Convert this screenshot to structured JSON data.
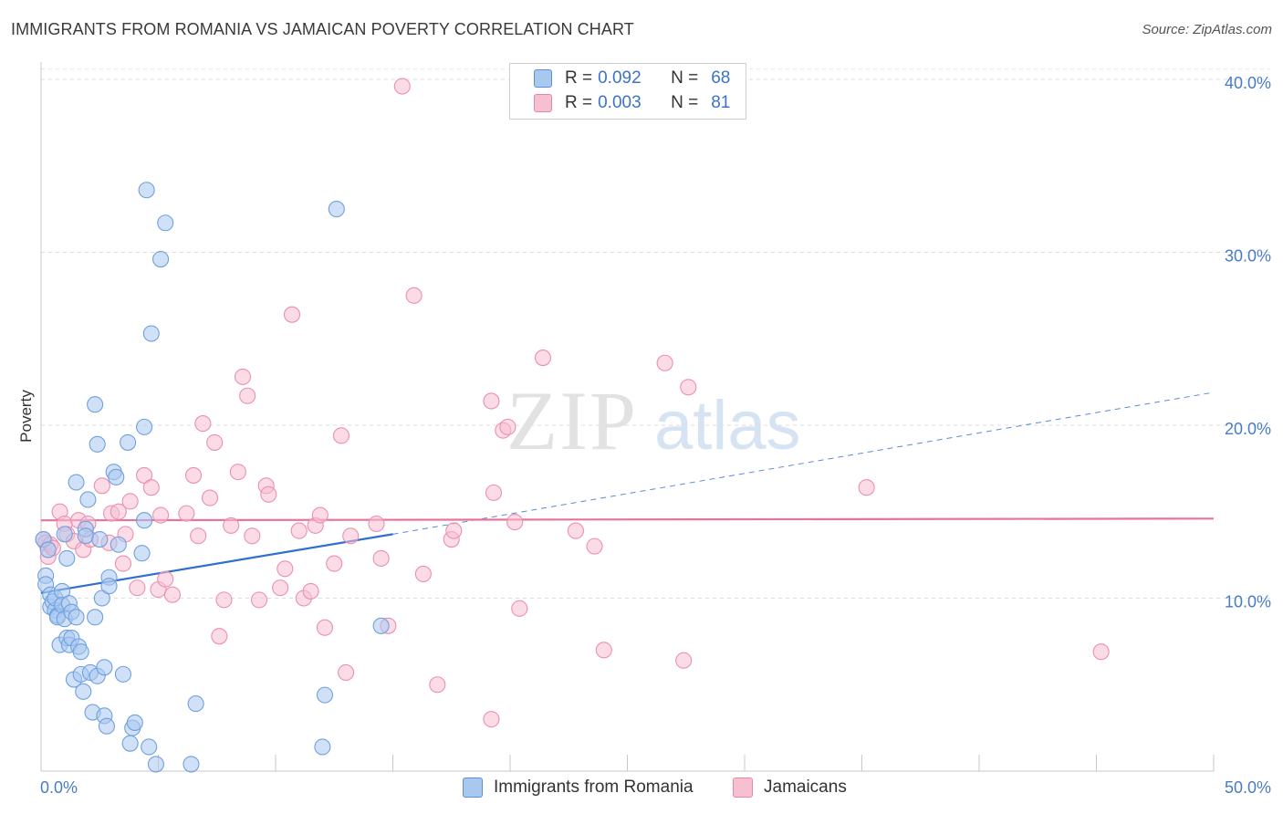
{
  "title": "IMMIGRANTS FROM ROMANIA VS JAMAICAN POVERTY CORRELATION CHART",
  "source": "Source: ZipAtlas.com",
  "watermark": {
    "zip": "ZIP",
    "atlas": "atlas"
  },
  "legend": {
    "r_label": "R =",
    "n_label": "N =",
    "rows": [
      {
        "r": "0.092",
        "n": "68",
        "color": "#a9c8f0",
        "border": "#5b8fd6"
      },
      {
        "r": "0.003",
        "n": "81",
        "color": "#f7c0d1",
        "border": "#e884a6"
      }
    ]
  },
  "chart_data": {
    "type": "scatter",
    "title": "IMMIGRANTS FROM ROMANIA VS JAMAICAN POVERTY CORRELATION CHART",
    "xlabel": "",
    "ylabel": "Poverty",
    "xlim": [
      0,
      50
    ],
    "ylim": [
      0,
      41
    ],
    "x_tick_labels": [
      "0.0%",
      "50.0%"
    ],
    "y_ticks": [
      10,
      20,
      30,
      40
    ],
    "y_tick_labels": [
      "10.0%",
      "20.0%",
      "30.0%",
      "40.0%"
    ],
    "grid": true,
    "legend_placement": "top-center",
    "series": [
      {
        "name": "Immigrants from Romania",
        "color": "#6fa0e0",
        "fill": "#a9c8f0",
        "trend": {
          "x": [
            0,
            15
          ],
          "y": [
            10.3,
            13.7
          ],
          "extended_to": [
            50,
            21.9
          ],
          "color": "#2e6fd1"
        },
        "points": [
          [
            0.1,
            13.4
          ],
          [
            0.2,
            11.3
          ],
          [
            0.2,
            10.8
          ],
          [
            0.3,
            12.8
          ],
          [
            0.4,
            10.2
          ],
          [
            0.4,
            9.5
          ],
          [
            0.5,
            9.8
          ],
          [
            0.6,
            9.3
          ],
          [
            0.6,
            10.0
          ],
          [
            0.7,
            9.0
          ],
          [
            0.7,
            8.9
          ],
          [
            0.8,
            7.3
          ],
          [
            0.9,
            10.4
          ],
          [
            0.9,
            9.6
          ],
          [
            1.0,
            13.7
          ],
          [
            1.0,
            8.8
          ],
          [
            1.1,
            12.3
          ],
          [
            1.1,
            7.7
          ],
          [
            1.2,
            7.3
          ],
          [
            1.2,
            9.7
          ],
          [
            1.3,
            7.7
          ],
          [
            1.3,
            9.2
          ],
          [
            1.4,
            5.3
          ],
          [
            1.5,
            16.7
          ],
          [
            1.5,
            8.9
          ],
          [
            1.6,
            7.2
          ],
          [
            1.7,
            6.9
          ],
          [
            1.7,
            5.6
          ],
          [
            1.8,
            4.6
          ],
          [
            1.9,
            14.0
          ],
          [
            1.9,
            13.6
          ],
          [
            2.0,
            15.7
          ],
          [
            2.1,
            5.7
          ],
          [
            2.2,
            3.4
          ],
          [
            2.3,
            8.9
          ],
          [
            2.3,
            21.2
          ],
          [
            2.4,
            18.9
          ],
          [
            2.4,
            5.5
          ],
          [
            2.5,
            13.4
          ],
          [
            2.6,
            10.0
          ],
          [
            2.7,
            6.0
          ],
          [
            2.7,
            3.2
          ],
          [
            2.8,
            2.6
          ],
          [
            2.9,
            11.2
          ],
          [
            2.9,
            10.7
          ],
          [
            3.1,
            17.3
          ],
          [
            3.2,
            17.0
          ],
          [
            3.3,
            13.1
          ],
          [
            3.5,
            5.6
          ],
          [
            3.7,
            19.0
          ],
          [
            3.8,
            1.6
          ],
          [
            3.9,
            2.5
          ],
          [
            4.0,
            2.8
          ],
          [
            4.3,
            12.6
          ],
          [
            4.4,
            14.5
          ],
          [
            4.4,
            19.9
          ],
          [
            4.5,
            33.6
          ],
          [
            4.6,
            1.4
          ],
          [
            4.7,
            25.3
          ],
          [
            4.9,
            0.4
          ],
          [
            5.1,
            29.6
          ],
          [
            5.3,
            31.7
          ],
          [
            6.4,
            0.4
          ],
          [
            6.6,
            3.9
          ],
          [
            12.0,
            1.4
          ],
          [
            12.1,
            4.4
          ],
          [
            12.6,
            32.5
          ],
          [
            14.5,
            8.4
          ]
        ]
      },
      {
        "name": "Jamaicans",
        "color": "#ec8fae",
        "fill": "#f7c0d1",
        "trend": {
          "x": [
            0,
            50
          ],
          "y": [
            14.5,
            14.6
          ],
          "color": "#e8739a"
        },
        "points": [
          [
            0.1,
            13.4
          ],
          [
            0.2,
            13.2
          ],
          [
            0.3,
            12.4
          ],
          [
            0.4,
            13.1
          ],
          [
            0.5,
            12.9
          ],
          [
            0.8,
            15.0
          ],
          [
            1.0,
            14.3
          ],
          [
            1.1,
            13.7
          ],
          [
            1.4,
            13.3
          ],
          [
            1.6,
            14.5
          ],
          [
            1.8,
            12.8
          ],
          [
            2.0,
            14.3
          ],
          [
            2.1,
            13.4
          ],
          [
            2.6,
            16.5
          ],
          [
            2.9,
            13.2
          ],
          [
            3.0,
            14.9
          ],
          [
            3.3,
            15.0
          ],
          [
            3.5,
            12.0
          ],
          [
            3.6,
            13.7
          ],
          [
            3.8,
            15.6
          ],
          [
            4.1,
            10.6
          ],
          [
            4.4,
            17.1
          ],
          [
            4.7,
            16.4
          ],
          [
            5.0,
            10.5
          ],
          [
            5.1,
            14.8
          ],
          [
            5.3,
            11.1
          ],
          [
            5.6,
            10.2
          ],
          [
            6.2,
            14.9
          ],
          [
            6.5,
            17.1
          ],
          [
            6.7,
            13.6
          ],
          [
            6.9,
            20.1
          ],
          [
            7.2,
            15.8
          ],
          [
            7.4,
            19.0
          ],
          [
            7.6,
            7.8
          ],
          [
            7.8,
            9.9
          ],
          [
            8.1,
            14.2
          ],
          [
            8.4,
            17.3
          ],
          [
            8.6,
            22.8
          ],
          [
            8.8,
            21.7
          ],
          [
            9.0,
            13.6
          ],
          [
            9.3,
            9.9
          ],
          [
            9.6,
            16.5
          ],
          [
            9.7,
            16.0
          ],
          [
            10.2,
            10.6
          ],
          [
            10.4,
            11.7
          ],
          [
            10.7,
            26.4
          ],
          [
            11.0,
            13.9
          ],
          [
            11.2,
            10.0
          ],
          [
            11.5,
            10.4
          ],
          [
            11.7,
            14.2
          ],
          [
            11.9,
            14.8
          ],
          [
            12.1,
            8.3
          ],
          [
            12.5,
            12.0
          ],
          [
            12.8,
            19.4
          ],
          [
            13.0,
            5.7
          ],
          [
            13.2,
            13.6
          ],
          [
            14.3,
            14.3
          ],
          [
            14.5,
            12.3
          ],
          [
            14.8,
            8.4
          ],
          [
            15.4,
            39.6
          ],
          [
            15.9,
            27.5
          ],
          [
            16.3,
            11.4
          ],
          [
            16.9,
            5.0
          ],
          [
            17.5,
            13.4
          ],
          [
            17.6,
            13.9
          ],
          [
            19.2,
            3.0
          ],
          [
            19.2,
            21.4
          ],
          [
            19.3,
            16.1
          ],
          [
            19.7,
            19.7
          ],
          [
            19.9,
            19.9
          ],
          [
            20.2,
            14.4
          ],
          [
            20.4,
            9.4
          ],
          [
            21.4,
            23.9
          ],
          [
            22.8,
            13.9
          ],
          [
            23.6,
            13.0
          ],
          [
            24.0,
            7.0
          ],
          [
            26.6,
            23.6
          ],
          [
            27.4,
            6.4
          ],
          [
            27.6,
            22.2
          ],
          [
            35.2,
            16.4
          ],
          [
            45.2,
            6.9
          ]
        ]
      }
    ]
  },
  "bottom_legend": [
    {
      "label": "Immigrants from Romania",
      "color": "#a9c8f0",
      "border": "#5b8fd6"
    },
    {
      "label": "Jamaicans",
      "color": "#f7c0d1",
      "border": "#e884a6"
    }
  ]
}
